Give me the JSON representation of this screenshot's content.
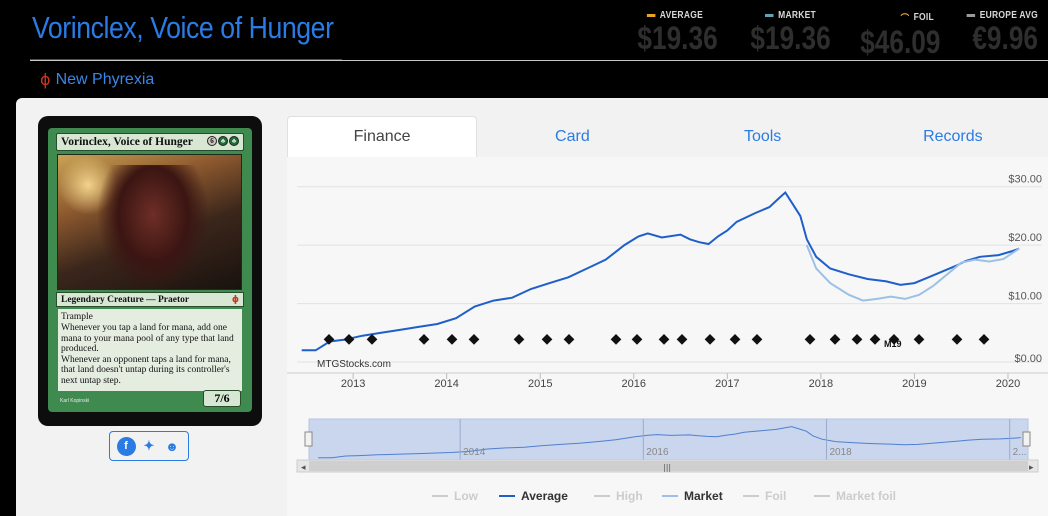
{
  "card": {
    "title": "Vorinclex, Voice of Hunger",
    "set_name": "New Phyrexia",
    "set_icon": "phi-set-icon",
    "image": {
      "name": "Vorinclex, Voice of Hunger",
      "mana_generic": "6",
      "type_line": "Legendary Creature — Praetor",
      "rules_1": "Trample",
      "rules_2": "Whenever you tap a land for mana, add one mana to your mana pool of any type that land produced.",
      "rules_3": "Whenever an opponent taps a land for mana, that land doesn't untap during its controller's next untap step.",
      "pt": "7/6",
      "artist": "Karl Kopinski"
    }
  },
  "prices": [
    {
      "label": "AVERAGE",
      "value": "$19.36",
      "color": "#e5a42a"
    },
    {
      "label": "MARKET",
      "value": "$19.36",
      "color": "#5ba6b5"
    },
    {
      "label": "FOIL",
      "value": "$46.09",
      "color": "#e5a42a"
    },
    {
      "label": "EUROPE AVG",
      "value": "€9.96",
      "color": "#9a9a9a"
    }
  ],
  "tabs": [
    "Finance",
    "Card",
    "Tools",
    "Records"
  ],
  "active_tab": "Finance",
  "watermark": "MTGStocks.com",
  "legend": [
    {
      "label": "Low",
      "color": "#cccccc",
      "active": false
    },
    {
      "label": "Average",
      "color": "#1e5fc9",
      "active": true
    },
    {
      "label": "High",
      "color": "#cccccc",
      "active": false
    },
    {
      "label": "Market",
      "color": "#9cc0e6",
      "active": true
    },
    {
      "label": "Foil",
      "color": "#cccccc",
      "active": false
    },
    {
      "label": "Market foil",
      "color": "#cccccc",
      "active": false
    }
  ],
  "chart_data": {
    "type": "line",
    "y_ticks": [
      "$0.00",
      "$10.00",
      "$20.00",
      "$30.00"
    ],
    "y_tick_values": [
      0,
      10,
      20,
      30
    ],
    "ylim": [
      0,
      32
    ],
    "x_ticks": [
      "2013",
      "2014",
      "2015",
      "2016",
      "2017",
      "2018",
      "2019",
      "2020"
    ],
    "navigator_ticks": [
      "2014",
      "2016",
      "2018",
      "2..."
    ],
    "x_start": 2012.4,
    "x_end": 2020.15,
    "series": [
      {
        "name": "Average",
        "color": "#1e5fc9",
        "points": [
          [
            2012.45,
            2.0
          ],
          [
            2012.6,
            2.0
          ],
          [
            2012.75,
            3.5
          ],
          [
            2012.9,
            3.8
          ],
          [
            2013.1,
            4.5
          ],
          [
            2013.3,
            5.0
          ],
          [
            2013.5,
            5.5
          ],
          [
            2013.7,
            6.0
          ],
          [
            2013.9,
            6.5
          ],
          [
            2014.1,
            7.5
          ],
          [
            2014.3,
            9.5
          ],
          [
            2014.5,
            10.5
          ],
          [
            2014.7,
            11.0
          ],
          [
            2014.9,
            12.5
          ],
          [
            2015.1,
            13.5
          ],
          [
            2015.3,
            14.5
          ],
          [
            2015.5,
            16.0
          ],
          [
            2015.7,
            17.5
          ],
          [
            2015.9,
            20.0
          ],
          [
            2016.05,
            21.5
          ],
          [
            2016.15,
            22.0
          ],
          [
            2016.3,
            21.3
          ],
          [
            2016.5,
            21.8
          ],
          [
            2016.6,
            21.0
          ],
          [
            2016.7,
            20.5
          ],
          [
            2016.8,
            20.2
          ],
          [
            2016.9,
            21.5
          ],
          [
            2017.0,
            22.5
          ],
          [
            2017.1,
            24.0
          ],
          [
            2017.3,
            25.5
          ],
          [
            2017.45,
            26.5
          ],
          [
            2017.55,
            28.0
          ],
          [
            2017.62,
            29.0
          ],
          [
            2017.7,
            27.0
          ],
          [
            2017.78,
            25.0
          ],
          [
            2017.85,
            21.0
          ],
          [
            2017.95,
            18.0
          ],
          [
            2018.1,
            16.0
          ],
          [
            2018.3,
            15.0
          ],
          [
            2018.5,
            14.2
          ],
          [
            2018.7,
            13.8
          ],
          [
            2018.85,
            13.2
          ],
          [
            2019.0,
            13.5
          ],
          [
            2019.15,
            14.5
          ],
          [
            2019.3,
            15.5
          ],
          [
            2019.45,
            16.5
          ],
          [
            2019.55,
            17.3
          ],
          [
            2019.7,
            18.0
          ],
          [
            2019.9,
            18.3
          ],
          [
            2020.05,
            19.0
          ],
          [
            2020.12,
            19.4
          ]
        ]
      },
      {
        "name": "Market",
        "color": "#9cc0e6",
        "points": [
          [
            2017.85,
            20.0
          ],
          [
            2017.95,
            16.0
          ],
          [
            2018.1,
            13.5
          ],
          [
            2018.3,
            11.5
          ],
          [
            2018.45,
            10.5
          ],
          [
            2018.6,
            10.8
          ],
          [
            2018.75,
            11.2
          ],
          [
            2018.9,
            10.8
          ],
          [
            2019.05,
            11.5
          ],
          [
            2019.2,
            13.0
          ],
          [
            2019.35,
            15.0
          ],
          [
            2019.5,
            17.0
          ],
          [
            2019.65,
            17.5
          ],
          [
            2019.8,
            17.2
          ],
          [
            2019.95,
            17.6
          ],
          [
            2020.12,
            19.4
          ]
        ]
      }
    ]
  },
  "set_symbols": [
    "set-icon-1",
    "set-icon-2",
    "set-icon-3",
    "set-icon-4",
    "set-icon-5",
    "set-icon-6",
    "set-icon-7",
    "set-icon-8",
    "set-icon-9",
    "set-icon-10",
    "set-icon-11",
    "set-icon-12",
    "set-icon-13",
    "set-icon-14",
    "set-icon-15",
    "set-icon-16",
    "set-icon-17",
    "set-icon-18",
    "set-icon-19",
    "set-icon-20",
    "set-icon-21",
    "set-icon-22",
    "set-icon-23",
    "set-icon-24"
  ],
  "set_symbol_glyph": "◆",
  "set_symbol_text": "M19"
}
